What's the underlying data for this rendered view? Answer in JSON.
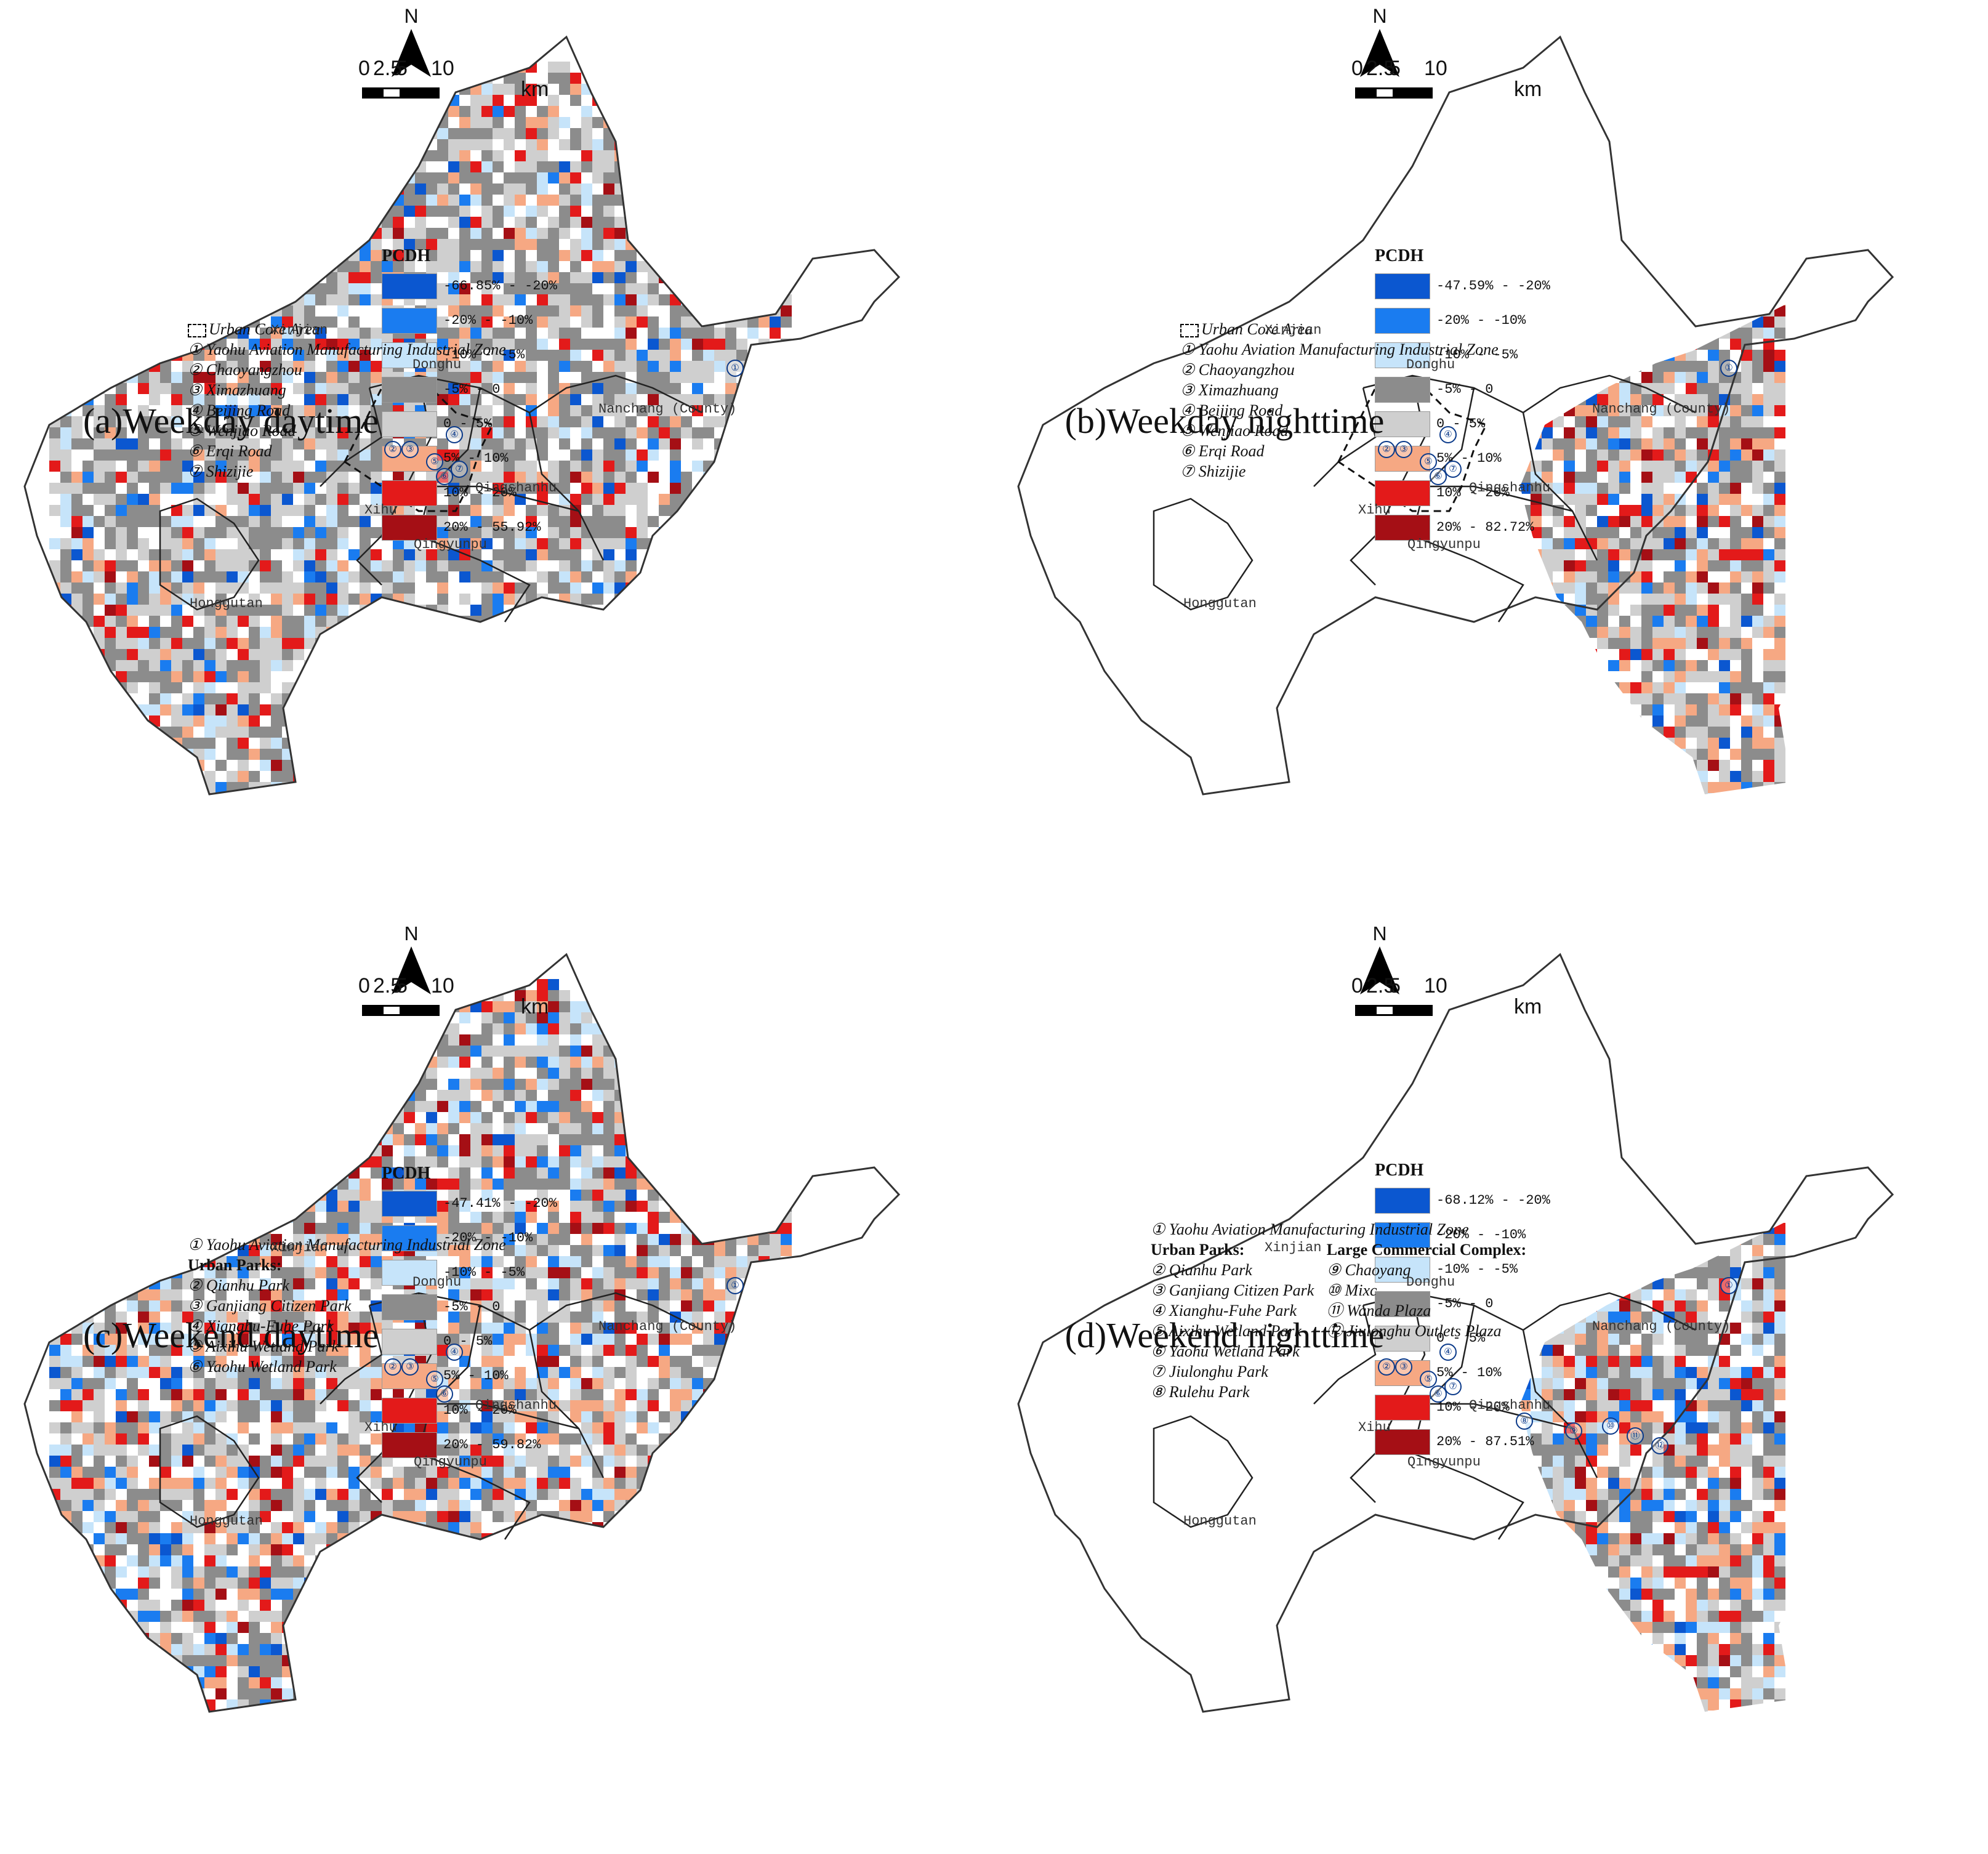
{
  "colors": {
    "c0": "#0b57d0",
    "c1": "#1a7cf0",
    "c2": "#c6e4fa",
    "c3": "#8c8c8c",
    "c4": "#cfcfcf",
    "c5": "#f6a883",
    "c6": "#e31a1a",
    "c7": "#a50f15"
  },
  "scale": {
    "ticks": [
      "0",
      "2.5",
      "5",
      "10"
    ],
    "unit": "km"
  },
  "north_label": "N",
  "places": [
    "Xinjian",
    "Donghu",
    "Nanchang (County)",
    "Qingshanhu",
    "Xihu",
    "Qingyunpu",
    "Honggutan"
  ],
  "panels": [
    {
      "caption": "(a)Weekday daytime",
      "legend_title": "PCDH",
      "legend": [
        "-66.85% - -20%",
        "-20% - -10%",
        "-10% - -5%",
        "-5% - 0",
        "0 - 5%",
        "5% - 10%",
        "10% - 20%",
        "20% - 55.92%"
      ],
      "key_core": "Urban Core Area",
      "key": [
        "① Yaohu Aviation Manufacturing Industrial Zone",
        "② Chaoyangzhou",
        "③ Ximazhuang",
        "④ Beijing Road",
        "⑤ Wenjiao Road",
        "⑥ Erqi Road",
        "⑦ Shizijie"
      ],
      "markers": [
        "①",
        "②",
        "③",
        "④",
        "⑤",
        "⑥",
        "⑦"
      ]
    },
    {
      "caption": "(b)Weekday nighttime",
      "legend_title": "PCDH",
      "legend": [
        "-47.59% - -20%",
        "-20% - -10%",
        "-10% - -5%",
        "-5% - 0",
        "0 - 5%",
        "5% - 10%",
        "10% - 20%",
        "20% - 82.72%"
      ],
      "key_core": "Urban Core Area",
      "key": [
        "① Yaohu Aviation Manufacturing Industrial Zone",
        "② Chaoyangzhou",
        "③ Ximazhuang",
        "④ Beijing Road",
        "⑤ Wenjiao Road",
        "⑥ Erqi Road",
        "⑦ Shizijie"
      ],
      "markers": [
        "①",
        "②",
        "③",
        "④",
        "⑤",
        "⑥",
        "⑦"
      ]
    },
    {
      "caption": "(c)Weekend daytime",
      "legend_title": "PCDH",
      "legend": [
        "-47.41% - -20%",
        "-20% - -10%",
        "-10% - -5%",
        "-5% - 0",
        "0 - 5%",
        "5% - 10%",
        "10% - 20%",
        "20% - 59.82%"
      ],
      "key_top": "① Yaohu Aviation Manufacturing Industrial Zone",
      "key_hdr": "Urban Parks:",
      "key": [
        "② Qianhu Park",
        "③ Ganjiang Citizen Park",
        "④ Xianghu-Fuhe Park",
        "⑤ Aixihu Wetland Park",
        "⑥ Yaohu Wetland Park"
      ],
      "markers": [
        "①",
        "②",
        "③",
        "④",
        "⑤",
        "⑥"
      ]
    },
    {
      "caption": "(d)Weekend nighttime",
      "legend_title": "PCDH",
      "legend": [
        "-68.12% - -20%",
        "-20% - -10%",
        "-10% - -5%",
        "-5% - 0",
        "0 - 5%",
        "5% - 10%",
        "10% - 20%",
        "20% - 87.51%"
      ],
      "key_top": "① Yaohu Aviation Manufacturing Industrial Zone",
      "key_hdr": "Urban Parks:",
      "key": [
        "② Qianhu Park",
        "③ Ganjiang Citizen Park",
        "④ Xianghu-Fuhe Park",
        "⑤ Aixihu Wetland Park",
        "⑥ Yaohu Wetland Park",
        "⑦ Jiulonghu Park",
        "⑧ Rulehu Park"
      ],
      "key2_hdr": "Large Commercial Complex:",
      "key2": [
        "⑨ Chaoyang",
        "⑩ Mixc",
        "⑪ Wanda Plaza",
        "⑫ Jiulonghu Outlets Plaza"
      ],
      "markers": [
        "①",
        "②",
        "③",
        "④",
        "⑤",
        "⑥",
        "⑦",
        "⑧",
        "⑨",
        "⑩",
        "⑪",
        "⑫"
      ]
    }
  ]
}
